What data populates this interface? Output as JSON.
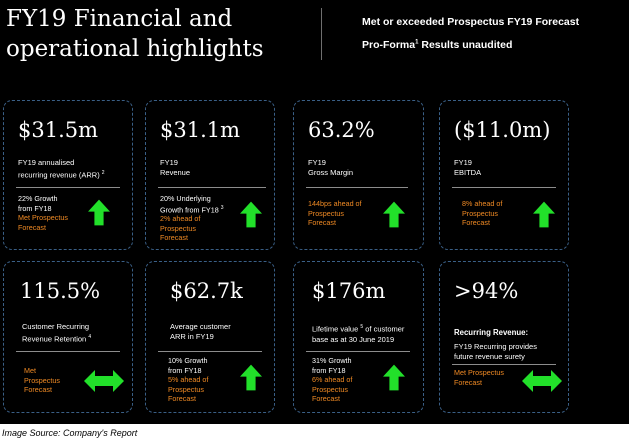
{
  "header": {
    "title_line1": "FY19 Financial and",
    "title_line2": "operational highlights",
    "subtitle1": "Met or exceeded Prospectus FY19 Forecast",
    "subtitle2_pre": "Pro-Forma",
    "subtitle2_sup": "1",
    "subtitle2_post": " Results unaudited"
  },
  "colors": {
    "background": "#000000",
    "accent_orange": "#f08a24",
    "arrow_green": "#22e02a",
    "card_border": "#3a5f86"
  },
  "cards": [
    {
      "value": "$31.5m",
      "desc_line1": "FY19 annualised",
      "desc_line2": "recurring revenue (ARR)",
      "desc_sup": "2",
      "foot_white1": "22% Growth",
      "foot_white2": "from FY18",
      "foot_orange1": "Met Prospectus",
      "foot_orange2": "Forecast",
      "arrow": "up-arrow-icon"
    },
    {
      "value": "$31.1m",
      "desc_line1": "FY19",
      "desc_line2": "Revenue",
      "foot_white1": "20% Underlying",
      "foot_white2": "Growth from FY18",
      "foot_white2_sup": "3",
      "foot_orange1": "2% ahead of",
      "foot_orange2": "Prospectus",
      "foot_orange3": "Forecast",
      "arrow": "up-arrow-icon"
    },
    {
      "value": "63.2%",
      "desc_line1": "FY19",
      "desc_line2": "Gross Margin",
      "foot_orange1": "144bps ahead of",
      "foot_orange2": "Prospectus",
      "foot_orange3": "Forecast",
      "arrow": "up-arrow-icon"
    },
    {
      "value": "($11.0m)",
      "desc_line1": "FY19",
      "desc_line2": "EBITDA",
      "foot_orange1": "8% ahead of",
      "foot_orange2": "Prospectus",
      "foot_orange3": "Forecast",
      "arrow": "up-arrow-icon"
    },
    {
      "value": "115.5%",
      "desc_line1": "Customer Recurring",
      "desc_line2": "Revenue Retention",
      "desc_sup": "4",
      "foot_orange1": "Met",
      "foot_orange2": "Prospectus",
      "foot_orange3": "Forecast",
      "arrow": "left-right-arrow-icon"
    },
    {
      "value": "$62.7k",
      "desc_line1": "Average customer",
      "desc_line2": "ARR in  FY19",
      "foot_white1": "10% Growth",
      "foot_white2": "from FY18",
      "foot_orange1": "5% ahead of",
      "foot_orange2": "Prospectus",
      "foot_orange3": "Forecast",
      "arrow": "up-arrow-icon"
    },
    {
      "value": "$176m",
      "desc_line1_pre": "Lifetime value",
      "desc_sup": "5",
      "desc_line1_post": " of customer",
      "desc_line2": "base as at 30 June 2019",
      "foot_white1": "31% Growth",
      "foot_white2": "from FY18",
      "foot_orange1": "6% ahead of",
      "foot_orange2": "Prospectus",
      "foot_orange3": "Forecast",
      "arrow": "up-arrow-icon"
    },
    {
      "value": ">94%",
      "rr_title": "Recurring Revenue:",
      "rr_desc1": "FY19 Recurring provides",
      "rr_desc2": "future revenue surety",
      "foot_orange1": "Met Prospectus",
      "foot_orange2": "Forecast",
      "arrow": "left-right-arrow-icon"
    }
  ],
  "caption": "Image Source: Company's Report"
}
